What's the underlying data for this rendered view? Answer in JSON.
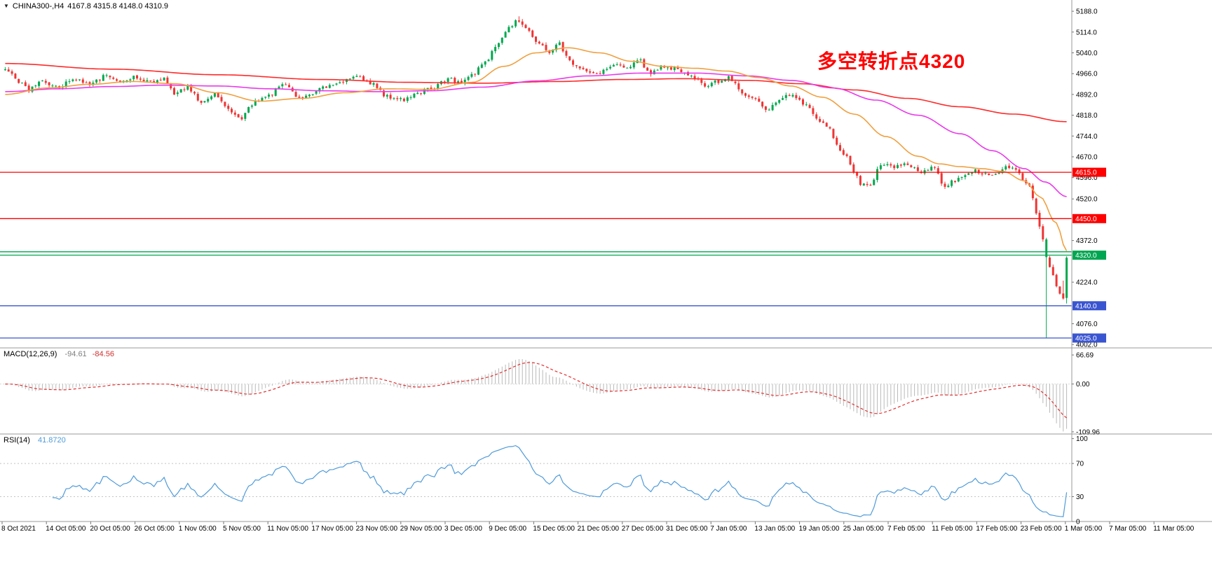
{
  "title_bar": {
    "collapse_icon": "▼",
    "symbol_timeframe": "CHINA300-,H4",
    "ohlc_text": "4167.8 4315.8 4148.0 4310.9"
  },
  "annotation": {
    "text": "多空转折点4320",
    "color": "#ff0000"
  },
  "price_axis": {
    "labels": [
      "5188.0",
      "5114.0",
      "5040.0",
      "4966.0",
      "4892.0",
      "4818.0",
      "4744.0",
      "4670.0",
      "4596.0",
      "4520.0",
      "4372.0",
      "4224.0",
      "4076.0",
      "4002.0"
    ],
    "tags": [
      {
        "text": "4615.0",
        "value": 4615.0,
        "color": "#ff0000"
      },
      {
        "text": "4450.0",
        "value": 4450.0,
        "color": "#ff0000"
      },
      {
        "text": "4320.0",
        "value": 4320.0,
        "color": "#00a651"
      },
      {
        "text": "4140.0",
        "value": 4140.0,
        "color": "#3a55d0"
      },
      {
        "text": "4025.0",
        "value": 4025.0,
        "color": "#3a55d0"
      }
    ]
  },
  "macd_panel": {
    "label": "MACD(12,26,9)",
    "main_value": "-94.61",
    "signal_value": "-84.56",
    "axis_labels": [
      {
        "text": "66.69",
        "value": 66.69
      },
      {
        "text": "0.00",
        "value": 0
      },
      {
        "text": "-109.96",
        "value": -109.96
      }
    ]
  },
  "rsi_panel": {
    "label": "RSI(14)",
    "value": "41.8720",
    "axis_labels": [
      {
        "text": "100",
        "value": 100
      },
      {
        "text": "70",
        "value": 70
      },
      {
        "text": "30",
        "value": 30
      },
      {
        "text": "0",
        "value": 0
      }
    ]
  },
  "time_axis": {
    "labels": [
      "8 Oct 2021",
      "14 Oct 05:00",
      "20 Oct 05:00",
      "26 Oct 05:00",
      "1 Nov 05:00",
      "5 Nov 05:00",
      "11 Nov 05:00",
      "17 Nov 05:00",
      "23 Nov 05:00",
      "29 Nov 05:00",
      "3 Dec 05:00",
      "9 Dec 05:00",
      "15 Dec 05:00",
      "21 Dec 05:00",
      "27 Dec 05:00",
      "31 Dec 05:00",
      "7 Jan 05:00",
      "13 Jan 05:00",
      "19 Jan 05:00",
      "25 Jan 05:00",
      "7 Feb 05:00",
      "11 Feb 05:00",
      "17 Feb 05:00",
      "23 Feb 05:00",
      "1 Mar 05:00",
      "7 Mar 05:00",
      "11 Mar 05:00"
    ]
  },
  "chart_data": {
    "type": "candlestick",
    "symbol": "CHINA300",
    "timeframe": "H4",
    "title": "CHINA300-,H4",
    "bar_count": 315,
    "price_range": [
      3990,
      5228
    ],
    "up_color": "#00a84e",
    "down_color": "#ef3434",
    "last_candle": {
      "open": 4167.8,
      "high": 4315.8,
      "low": 4148.0,
      "close": 4310.9
    },
    "session_high": {
      "t": 0.485,
      "high": 5170.0
    },
    "spike_low": {
      "bars_from_end": 7,
      "low": 4025.0
    },
    "price_path_keyframes": [
      [
        0,
        4985
      ],
      [
        0.01,
        4950
      ],
      [
        0.022,
        4905
      ],
      [
        0.035,
        4945
      ],
      [
        0.05,
        4915
      ],
      [
        0.065,
        4950
      ],
      [
        0.08,
        4930
      ],
      [
        0.095,
        4958
      ],
      [
        0.11,
        4940
      ],
      [
        0.125,
        4955
      ],
      [
        0.14,
        4930
      ],
      [
        0.15,
        4945
      ],
      [
        0.16,
        4895
      ],
      [
        0.172,
        4920
      ],
      [
        0.185,
        4860
      ],
      [
        0.198,
        4900
      ],
      [
        0.21,
        4835
      ],
      [
        0.222,
        4802
      ],
      [
        0.232,
        4855
      ],
      [
        0.248,
        4885
      ],
      [
        0.262,
        4930
      ],
      [
        0.278,
        4872
      ],
      [
        0.295,
        4912
      ],
      [
        0.315,
        4938
      ],
      [
        0.33,
        4955
      ],
      [
        0.345,
        4932
      ],
      [
        0.36,
        4882
      ],
      [
        0.375,
        4870
      ],
      [
        0.39,
        4898
      ],
      [
        0.405,
        4918
      ],
      [
        0.418,
        4948
      ],
      [
        0.43,
        4930
      ],
      [
        0.442,
        4968
      ],
      [
        0.452,
        5000
      ],
      [
        0.462,
        5065
      ],
      [
        0.472,
        5115
      ],
      [
        0.482,
        5152
      ],
      [
        0.492,
        5118
      ],
      [
        0.5,
        5082
      ],
      [
        0.512,
        5042
      ],
      [
        0.522,
        5072
      ],
      [
        0.532,
        5012
      ],
      [
        0.545,
        4978
      ],
      [
        0.558,
        4960
      ],
      [
        0.572,
        4998
      ],
      [
        0.585,
        4982
      ],
      [
        0.598,
        5012
      ],
      [
        0.608,
        4968
      ],
      [
        0.62,
        4992
      ],
      [
        0.633,
        4980
      ],
      [
        0.648,
        4958
      ],
      [
        0.66,
        4918
      ],
      [
        0.67,
        4938
      ],
      [
        0.682,
        4950
      ],
      [
        0.695,
        4898
      ],
      [
        0.708,
        4868
      ],
      [
        0.718,
        4835
      ],
      [
        0.728,
        4868
      ],
      [
        0.74,
        4892
      ],
      [
        0.752,
        4862
      ],
      [
        0.765,
        4808
      ],
      [
        0.775,
        4782
      ],
      [
        0.785,
        4705
      ],
      [
        0.795,
        4658
      ],
      [
        0.805,
        4575
      ],
      [
        0.815,
        4560
      ],
      [
        0.825,
        4648
      ],
      [
        0.838,
        4632
      ],
      [
        0.85,
        4648
      ],
      [
        0.862,
        4612
      ],
      [
        0.875,
        4632
      ],
      [
        0.885,
        4562
      ],
      [
        0.895,
        4588
      ],
      [
        0.905,
        4608
      ],
      [
        0.915,
        4622
      ],
      [
        0.925,
        4602
      ],
      [
        0.935,
        4618
      ],
      [
        0.945,
        4632
      ],
      [
        0.952,
        4618
      ],
      [
        0.958,
        4598
      ],
      [
        0.965,
        4562
      ],
      [
        0.971,
        4478
      ],
      [
        0.977,
        4388
      ],
      [
        0.982,
        4300
      ],
      [
        0.987,
        4248
      ],
      [
        0.991,
        4205
      ],
      [
        0.995,
        4162
      ],
      [
        1,
        4310.9
      ]
    ],
    "moving_averages": [
      {
        "name": "slow-red-ma",
        "color": "#ff2a2a",
        "keyframes": [
          [
            0,
            5002
          ],
          [
            0.1,
            4982
          ],
          [
            0.2,
            4962
          ],
          [
            0.3,
            4945
          ],
          [
            0.38,
            4935
          ],
          [
            0.45,
            4932
          ],
          [
            0.52,
            4938
          ],
          [
            0.58,
            4945
          ],
          [
            0.64,
            4948
          ],
          [
            0.7,
            4942
          ],
          [
            0.75,
            4930
          ],
          [
            0.8,
            4908
          ],
          [
            0.85,
            4878
          ],
          [
            0.9,
            4848
          ],
          [
            0.95,
            4822
          ],
          [
            1,
            4795
          ]
        ]
      },
      {
        "name": "mid-magenta-ma",
        "color": "#ea3aea",
        "keyframes": [
          [
            0,
            4902
          ],
          [
            0.05,
            4912
          ],
          [
            0.1,
            4920
          ],
          [
            0.15,
            4925
          ],
          [
            0.2,
            4922
          ],
          [
            0.25,
            4912
          ],
          [
            0.3,
            4905
          ],
          [
            0.35,
            4902
          ],
          [
            0.4,
            4905
          ],
          [
            0.45,
            4918
          ],
          [
            0.5,
            4940
          ],
          [
            0.55,
            4958
          ],
          [
            0.6,
            4968
          ],
          [
            0.65,
            4968
          ],
          [
            0.7,
            4958
          ],
          [
            0.74,
            4942
          ],
          [
            0.78,
            4915
          ],
          [
            0.82,
            4872
          ],
          [
            0.86,
            4818
          ],
          [
            0.9,
            4752
          ],
          [
            0.93,
            4692
          ],
          [
            0.96,
            4628
          ],
          [
            0.98,
            4580
          ],
          [
            1,
            4528
          ]
        ]
      },
      {
        "name": "fast-orange-ma",
        "color": "#f0a040",
        "keyframes": [
          [
            0,
            4892
          ],
          [
            0.04,
            4915
          ],
          [
            0.08,
            4928
          ],
          [
            0.12,
            4938
          ],
          [
            0.16,
            4930
          ],
          [
            0.2,
            4898
          ],
          [
            0.24,
            4868
          ],
          [
            0.28,
            4878
          ],
          [
            0.32,
            4898
          ],
          [
            0.36,
            4912
          ],
          [
            0.4,
            4910
          ],
          [
            0.44,
            4935
          ],
          [
            0.47,
            4992
          ],
          [
            0.5,
            5040
          ],
          [
            0.53,
            5058
          ],
          [
            0.56,
            5040
          ],
          [
            0.59,
            5010
          ],
          [
            0.62,
            4992
          ],
          [
            0.65,
            4985
          ],
          [
            0.68,
            4975
          ],
          [
            0.71,
            4952
          ],
          [
            0.74,
            4922
          ],
          [
            0.77,
            4882
          ],
          [
            0.8,
            4822
          ],
          [
            0.83,
            4742
          ],
          [
            0.86,
            4672
          ],
          [
            0.88,
            4645
          ],
          [
            0.9,
            4635
          ],
          [
            0.92,
            4628
          ],
          [
            0.94,
            4618
          ],
          [
            0.96,
            4585
          ],
          [
            0.975,
            4528
          ],
          [
            0.99,
            4435
          ],
          [
            1,
            4335
          ]
        ]
      }
    ],
    "horizontal_levels": [
      {
        "value": 4615.0,
        "color": "#ff0000"
      },
      {
        "value": 4450.0,
        "color": "#ff0000"
      },
      {
        "value": 4332.0,
        "color": "#00a651"
      },
      {
        "value": 4320.0,
        "color": "#00a651"
      },
      {
        "value": 4140.0,
        "color": "#3a55d0"
      },
      {
        "value": 4025.0,
        "color": "#3a55d0"
      }
    ],
    "indicators": {
      "macd": {
        "fast": 12,
        "slow": 26,
        "signal": 9,
        "range": [
          -115,
          83
        ],
        "histogram_color": "#b9b9b9",
        "signal_color": "#e03030",
        "current_main": -94.61,
        "current_signal": -84.56
      },
      "rsi": {
        "period": 14,
        "range": [
          0,
          105.6
        ],
        "levels": [
          70,
          30
        ],
        "line_color": "#4f9bd9",
        "current": 41.872
      }
    }
  }
}
